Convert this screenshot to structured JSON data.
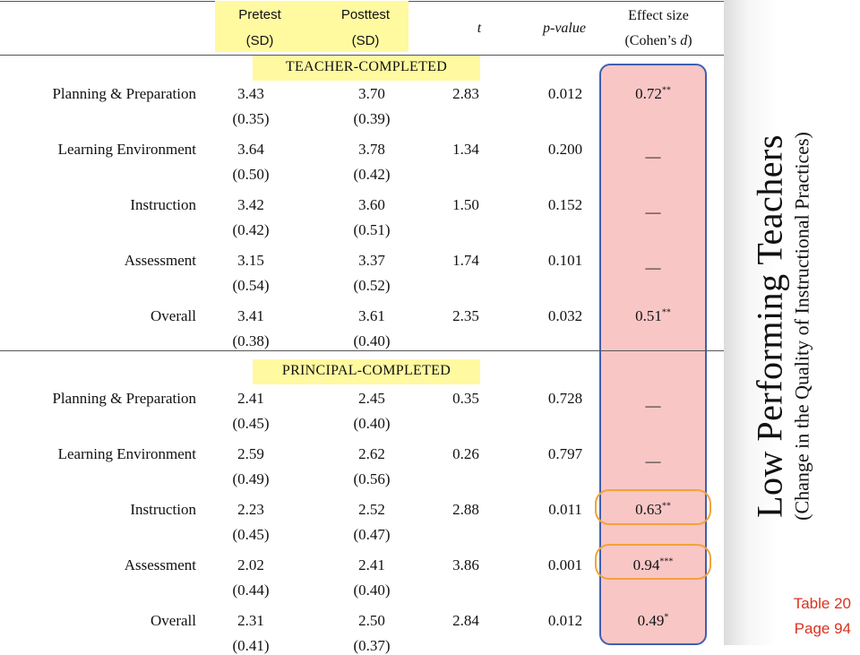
{
  "header": {
    "pretest_line1": "Pretest",
    "pretest_line2": "(SD)",
    "posttest_line1": "Posttest",
    "posttest_line2": "(SD)",
    "t": "t",
    "p_value": "p-value",
    "effect_line1": "Effect size",
    "effect_line2_pre": "(Cohen’s ",
    "effect_line2_d": "d",
    "effect_line2_post": ")"
  },
  "sections": {
    "teacher": "TEACHER-COMPLETED",
    "principal": "PRINCIPAL-COMPLETED"
  },
  "teacher_rows": [
    {
      "label": "Planning & Preparation",
      "pre": "3.43",
      "pre_sd": "(0.35)",
      "post": "3.70",
      "post_sd": "(0.39)",
      "t": "2.83",
      "p": "0.012",
      "es": "0.72",
      "sig": "**"
    },
    {
      "label": "Learning Environment",
      "pre": "3.64",
      "pre_sd": "(0.50)",
      "post": "3.78",
      "post_sd": "(0.42)",
      "t": "1.34",
      "p": "0.200",
      "es": "—",
      "sig": ""
    },
    {
      "label": "Instruction",
      "pre": "3.42",
      "pre_sd": "(0.42)",
      "post": "3.60",
      "post_sd": "(0.51)",
      "t": "1.50",
      "p": "0.152",
      "es": "—",
      "sig": ""
    },
    {
      "label": "Assessment",
      "pre": "3.15",
      "pre_sd": "(0.54)",
      "post": "3.37",
      "post_sd": "(0.52)",
      "t": "1.74",
      "p": "0.101",
      "es": "—",
      "sig": ""
    },
    {
      "label": "Overall",
      "pre": "3.41",
      "pre_sd": "(0.38)",
      "post": "3.61",
      "post_sd": "(0.40)",
      "t": "2.35",
      "p": "0.032",
      "es": "0.51",
      "sig": "**"
    }
  ],
  "principal_rows": [
    {
      "label": "Planning & Preparation",
      "pre": "2.41",
      "pre_sd": "(0.45)",
      "post": "2.45",
      "post_sd": "(0.40)",
      "t": "0.35",
      "p": "0.728",
      "es": "—",
      "sig": ""
    },
    {
      "label": "Learning Environment",
      "pre": "2.59",
      "pre_sd": "(0.49)",
      "post": "2.62",
      "post_sd": "(0.56)",
      "t": "0.26",
      "p": "0.797",
      "es": "—",
      "sig": ""
    },
    {
      "label": "Instruction",
      "pre": "2.23",
      "pre_sd": "(0.45)",
      "post": "2.52",
      "post_sd": "(0.47)",
      "t": "2.88",
      "p": "0.011",
      "es": "0.63",
      "sig": "**"
    },
    {
      "label": "Assessment",
      "pre": "2.02",
      "pre_sd": "(0.44)",
      "post": "2.41",
      "post_sd": "(0.40)",
      "t": "3.86",
      "p": "0.001",
      "es": "0.94",
      "sig": "***"
    },
    {
      "label": "Overall",
      "pre": "2.31",
      "pre_sd": "(0.41)",
      "post": "2.50",
      "post_sd": "(0.37)",
      "t": "2.84",
      "p": "0.012",
      "es": "0.49",
      "sig": "*"
    }
  ],
  "side": {
    "title": "Low Performing Teachers",
    "subtitle": "(Change in the Quality of Instructional Practices)",
    "table_ref": "Table 20",
    "page_ref": "Page 94"
  },
  "colors": {
    "highlight_yellow": "#fff9a0",
    "effect_fill": "#f9c6c6",
    "effect_border": "#3f5fb0",
    "ring_orange": "#f2a33a",
    "ref_red": "#d9321f"
  }
}
